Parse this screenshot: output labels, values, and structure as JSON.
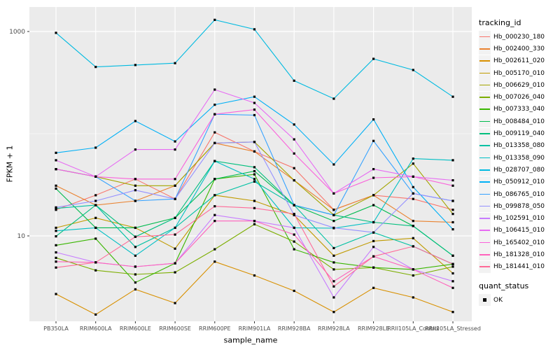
{
  "chart_data": {
    "type": "line",
    "title": "",
    "xlabel": "sample_name",
    "ylabel": "FPKM + 1",
    "y_scale": "log10",
    "ylim": [
      1.4,
      1600
    ],
    "grid": true,
    "panel_bg": "#EBEBEB",
    "grid_color": "#FFFFFF",
    "point_color": "#000000",
    "tick_label_color": "#4D4D4D",
    "y_ticks": [
      {
        "value": 1000,
        "label": "1000"
      },
      {
        "value": 10,
        "label": "10"
      }
    ],
    "y_minor": [
      100
    ],
    "categories": [
      "PB350LA",
      "RRIM600LA",
      "RRIM600LE",
      "RRIM600SE",
      "RRIM600PE",
      "RRIM901LA",
      "RRIM928BA",
      "RRIM928LA",
      "RRIM928LE",
      "RRII105LA_Control",
      "RRII105LA_Stressed"
    ],
    "series": [
      {
        "name": "Hb_000230_180",
        "color": "#F8766D",
        "values": [
          18,
          25,
          36,
          23,
          103,
          67,
          46,
          18,
          25,
          23,
          18
        ]
      },
      {
        "name": "Hb_002400_330",
        "color": "#EA8331",
        "values": [
          31,
          20,
          22,
          31,
          81,
          67,
          35,
          18,
          25,
          14,
          13.6
        ]
      },
      {
        "name": "Hb_002611_020",
        "color": "#D89000",
        "values": [
          2.7,
          1.7,
          3,
          2.2,
          5.6,
          4.1,
          2.9,
          1.8,
          3.1,
          2.5,
          1.8
        ]
      },
      {
        "name": "Hb_005170_010",
        "color": "#C09B00",
        "values": [
          12,
          15,
          12,
          7.5,
          25,
          22,
          16,
          6.4,
          8.9,
          9.5,
          4.3
        ]
      },
      {
        "name": "Hb_006629_010",
        "color": "#A3A500",
        "values": [
          45,
          38,
          31,
          31,
          81,
          83,
          35,
          16,
          25,
          51,
          16.4
        ]
      },
      {
        "name": "Hb_007026_040",
        "color": "#7CAE00",
        "values": [
          6.1,
          4.6,
          4.2,
          4.4,
          7.4,
          13,
          8.8,
          4.7,
          4.9,
          4.1,
          5
        ]
      },
      {
        "name": "Hb_007333_040",
        "color": "#39B600",
        "values": [
          8.1,
          9.4,
          3.5,
          5.4,
          36,
          40,
          7.4,
          5.5,
          4.9,
          4.7,
          5.3
        ]
      },
      {
        "name": "Hb_008484_010",
        "color": "#00BB4E",
        "values": [
          29,
          12,
          12,
          15,
          36,
          43,
          20,
          14,
          20,
          12.5,
          6.4
        ]
      },
      {
        "name": "Hb_009119_040",
        "color": "#00BF7D",
        "values": [
          9.9,
          20,
          9.8,
          15,
          54,
          47,
          20,
          16,
          13.6,
          12.5,
          6.4
        ]
      },
      {
        "name": "Hb_013358_080",
        "color": "#00C1A3",
        "values": [
          18.6,
          20,
          7.8,
          12,
          25,
          34,
          20,
          7.6,
          10.8,
          7.9,
          5.3
        ]
      },
      {
        "name": "Hb_013358_090",
        "color": "#00BFC4",
        "values": [
          11.2,
          12,
          6.4,
          12,
          54,
          36,
          12,
          11.9,
          13.6,
          57,
          55
        ]
      },
      {
        "name": "Hb_028707_080",
        "color": "#00BAE0",
        "values": [
          970,
          450,
          470,
          490,
          1300,
          1050,
          330,
          220,
          540,
          420,
          230
        ]
      },
      {
        "name": "Hb_050912_010",
        "color": "#00B0F6",
        "values": [
          65,
          73,
          133,
          84,
          192,
          230,
          123,
          50,
          138,
          30,
          11.6
        ]
      },
      {
        "name": "Hb_086765_010",
        "color": "#35A2FF",
        "values": [
          45,
          38,
          22,
          23,
          155,
          152,
          20,
          16,
          85,
          26,
          22
        ]
      },
      {
        "name": "Hb_099878_050",
        "color": "#9590FF",
        "values": [
          19,
          22,
          28,
          23,
          81,
          83,
          16,
          12,
          10.8,
          26,
          22
        ]
      },
      {
        "name": "Hb_102591_010",
        "color": "#C77CFF",
        "values": [
          6.9,
          5.5,
          5,
          5.4,
          16,
          14,
          12,
          2.5,
          7.8,
          4.7,
          3.6
        ]
      },
      {
        "name": "Hb_106415_010",
        "color": "#E76BF3",
        "values": [
          55,
          38,
          70,
          70,
          270,
          200,
          88,
          26,
          45,
          38,
          35
        ]
      },
      {
        "name": "Hb_165402_010",
        "color": "#FA62DB",
        "values": [
          45,
          38,
          36,
          36,
          155,
          172,
          64,
          26,
          37,
          38,
          31
        ]
      },
      {
        "name": "Hb_181328_010",
        "color": "#FF62BC",
        "values": [
          5.6,
          5.5,
          5,
          5.4,
          14,
          14,
          10.3,
          3.6,
          6.3,
          4.7,
          3.1
        ]
      },
      {
        "name": "Hb_181441_010",
        "color": "#FF6A98",
        "values": [
          4.9,
          5.5,
          9.8,
          10.3,
          19.5,
          18.7,
          16.4,
          3.2,
          6.3,
          7.9,
          5.3
        ]
      }
    ],
    "legend_position": "right"
  },
  "legend": {
    "title": "tracking_id",
    "quant_title": "quant_status",
    "quant_items": [
      {
        "label": "OK"
      }
    ]
  }
}
